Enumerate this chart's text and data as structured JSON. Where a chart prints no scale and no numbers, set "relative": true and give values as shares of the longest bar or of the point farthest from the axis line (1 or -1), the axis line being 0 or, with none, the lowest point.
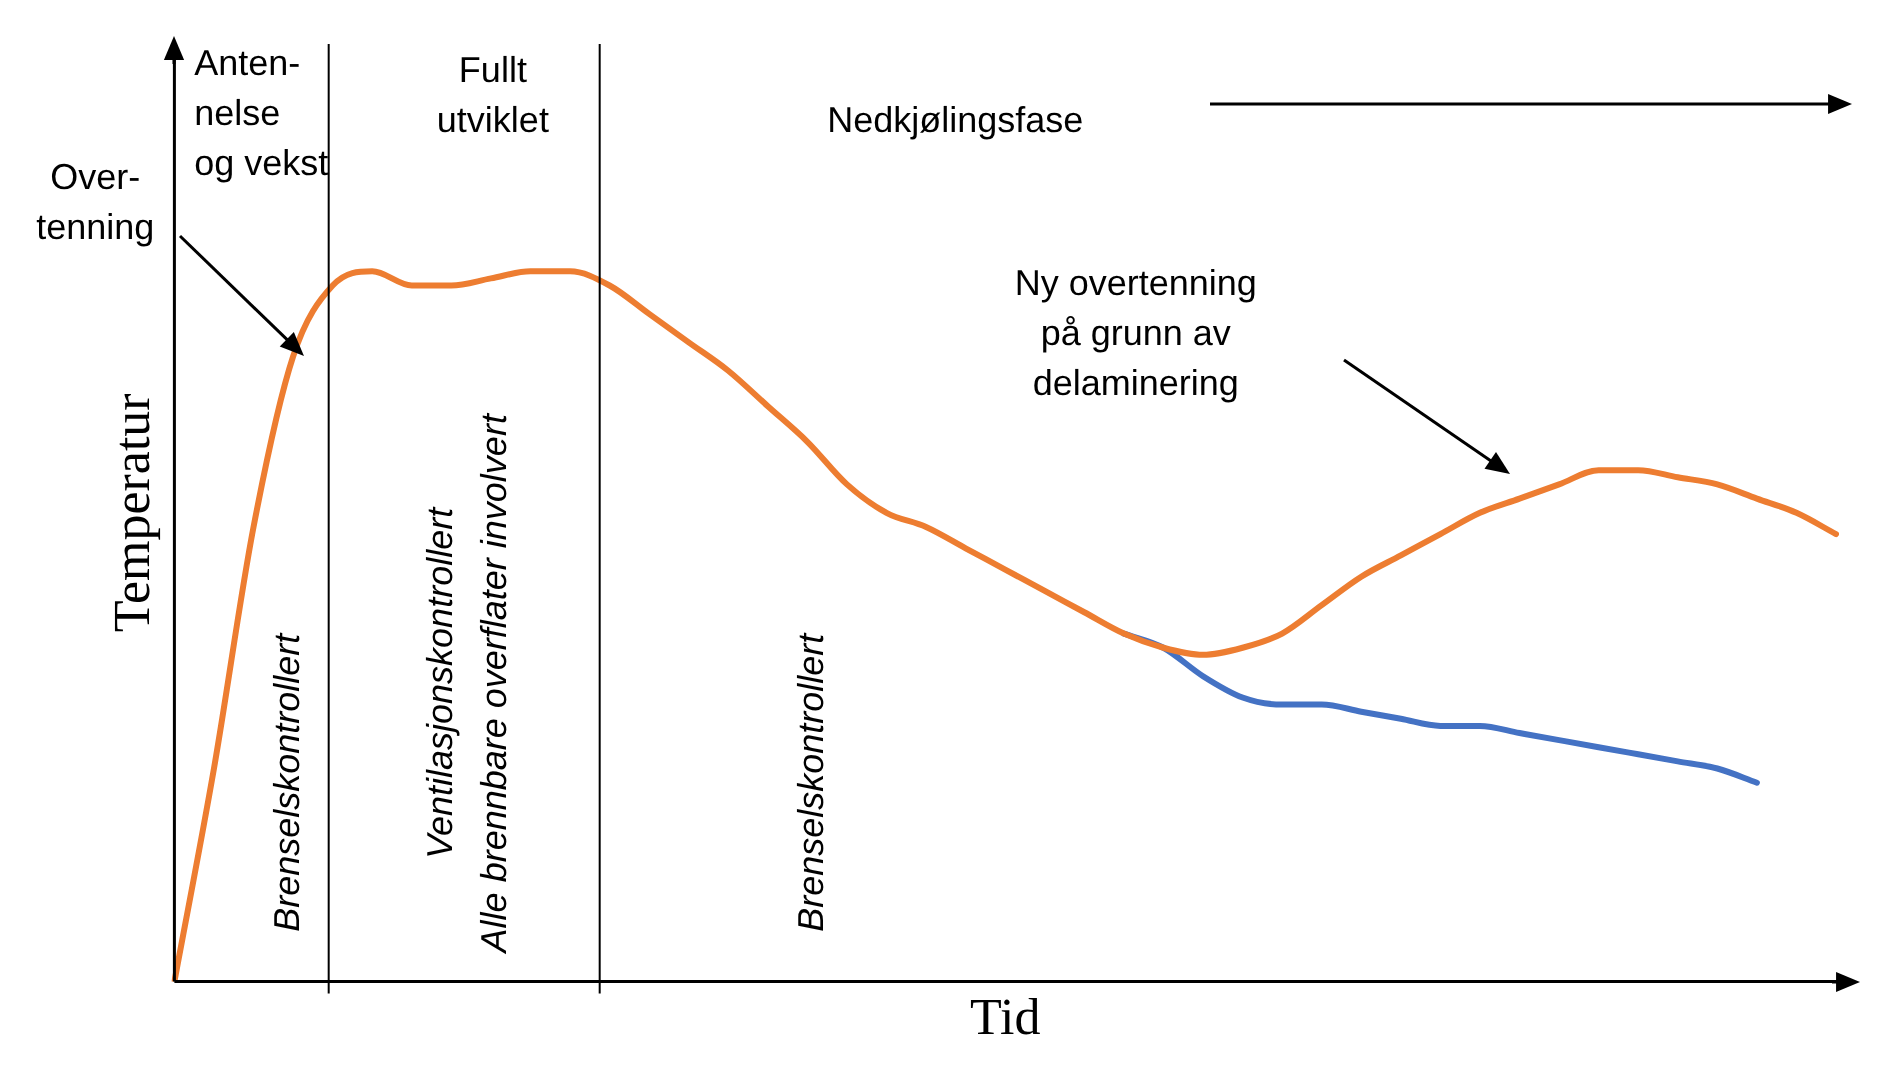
{
  "chart_data": {
    "type": "line",
    "relative": true,
    "xlabel": "Tid",
    "ylabel": "Temperatur",
    "legend": false,
    "grid": false,
    "tick_labels": false,
    "categories": [
      null,
      null,
      null,
      null,
      null,
      null,
      null,
      null,
      null,
      null,
      null,
      null,
      null,
      null,
      null,
      null,
      null,
      null,
      null,
      null,
      null,
      null,
      null,
      null,
      null,
      null,
      null,
      null,
      null,
      null,
      null,
      null,
      null,
      null,
      null,
      null,
      null,
      null,
      null,
      null,
      null,
      null,
      null
    ],
    "series": [
      {
        "color": "#ed7d31",
        "values": [
          0,
          0.3,
          0.64,
          0.88,
          0.98,
          1.0,
          0.98,
          0.98,
          0.99,
          1.0,
          1.0,
          0.98,
          0.94,
          0.9,
          0.86,
          0.81,
          0.76,
          0.7,
          0.66,
          0.64,
          0.61,
          0.58,
          0.55,
          0.52,
          0.49,
          0.47,
          0.46,
          0.47,
          0.49,
          0.53,
          0.57,
          0.6,
          0.63,
          0.66,
          0.68,
          0.7,
          0.72,
          0.72,
          0.71,
          0.7,
          0.68,
          0.66,
          0.63
        ]
      },
      {
        "color": "#4472c4",
        "values": [
          null,
          null,
          null,
          null,
          null,
          null,
          null,
          null,
          null,
          null,
          null,
          null,
          null,
          null,
          null,
          null,
          null,
          null,
          null,
          null,
          null,
          null,
          null,
          null,
          0.49,
          0.47,
          0.43,
          0.4,
          0.39,
          0.39,
          0.38,
          0.37,
          0.36,
          0.36,
          0.35,
          0.34,
          0.33,
          0.32,
          0.31,
          0.3,
          0.28,
          null,
          null
        ]
      }
    ],
    "annotations": [
      "Anten-\nnelse\nog vekst",
      "Fullt\nutviklet",
      "Over-\ntenning",
      "Nedkjølingsfase",
      "Ny overtenning\npå grunn av\ndelaminering",
      "Brenselskontrollert",
      "Ventilasjonskontrollert\nAlle brennbare overflater involvert",
      "Brenselskontrollert"
    ]
  }
}
